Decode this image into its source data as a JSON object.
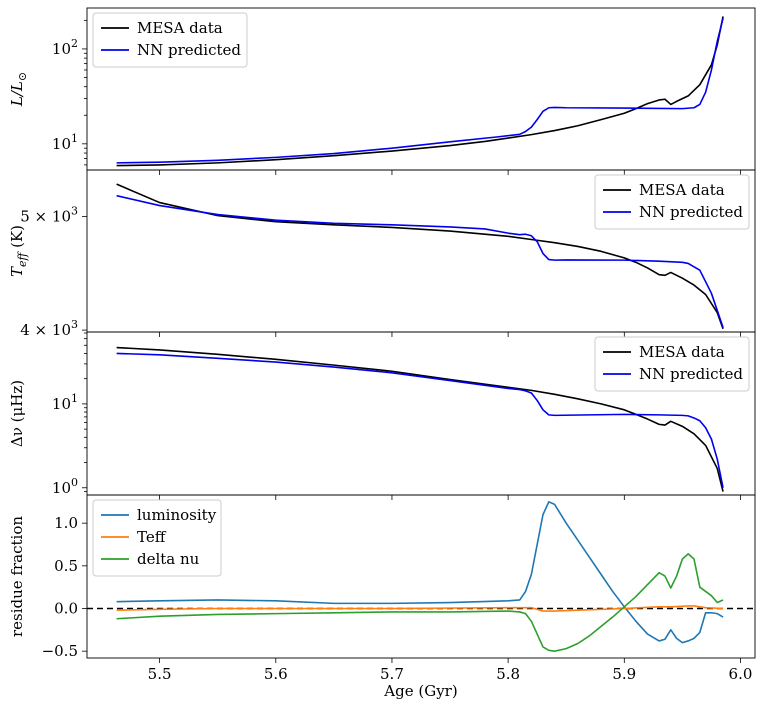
{
  "chart_data": [
    {
      "type": "line",
      "ylabel": "L/L⊙",
      "yscale": "log",
      "ylim": [
        5.3,
        270
      ],
      "xlim": [
        5.4375,
        6.0125
      ],
      "yticks": [
        {
          "value": 10,
          "label": "10",
          "sup": "1"
        },
        {
          "value": 100,
          "label": "10",
          "sup": "2"
        }
      ],
      "legend": {
        "placement": "top-left",
        "entries": [
          "MESA data",
          "NN predicted"
        ]
      },
      "series": [
        {
          "name": "MESA data",
          "color": "#000000",
          "points": [
            [
              5.463,
              5.9
            ],
            [
              5.5,
              6.0
            ],
            [
              5.55,
              6.3
            ],
            [
              5.6,
              6.8
            ],
            [
              5.65,
              7.5
            ],
            [
              5.7,
              8.4
            ],
            [
              5.75,
              9.6
            ],
            [
              5.78,
              10.6
            ],
            [
              5.8,
              11.5
            ],
            [
              5.82,
              12.5
            ],
            [
              5.84,
              13.8
            ],
            [
              5.86,
              15.5
            ],
            [
              5.88,
              18
            ],
            [
              5.9,
              21
            ],
            [
              5.91,
              23.5
            ],
            [
              5.92,
              26.5
            ],
            [
              5.93,
              29
            ],
            [
              5.935,
              29.5
            ],
            [
              5.94,
              26
            ],
            [
              5.945,
              28
            ],
            [
              5.955,
              32
            ],
            [
              5.965,
              42
            ],
            [
              5.975,
              68
            ],
            [
              5.98,
              110
            ],
            [
              5.985,
              220
            ]
          ]
        },
        {
          "name": "NN predicted",
          "color": "#0000ee",
          "points": [
            [
              5.463,
              6.3
            ],
            [
              5.5,
              6.4
            ],
            [
              5.55,
              6.7
            ],
            [
              5.6,
              7.2
            ],
            [
              5.65,
              7.9
            ],
            [
              5.7,
              9.0
            ],
            [
              5.75,
              10.5
            ],
            [
              5.79,
              11.8
            ],
            [
              5.81,
              12.6
            ],
            [
              5.815,
              13.5
            ],
            [
              5.82,
              15
            ],
            [
              5.825,
              18
            ],
            [
              5.83,
              22
            ],
            [
              5.835,
              24
            ],
            [
              5.84,
              24.2
            ],
            [
              5.85,
              24
            ],
            [
              5.9,
              23.8
            ],
            [
              5.95,
              23.5
            ],
            [
              5.96,
              24
            ],
            [
              5.965,
              26
            ],
            [
              5.97,
              35
            ],
            [
              5.975,
              60
            ],
            [
              5.98,
              120
            ],
            [
              5.985,
              210
            ]
          ]
        }
      ]
    },
    {
      "type": "line",
      "ylabel": "Teff (K)",
      "yscale": "log",
      "ylim": [
        3985,
        5480
      ],
      "xlim": [
        5.4375,
        6.0125
      ],
      "yticks": [
        {
          "value": 4000,
          "label": "4 × 10",
          "sup": "3"
        },
        {
          "value": 5000,
          "label": "5 × 10",
          "sup": "3"
        }
      ],
      "legend": {
        "placement": "top-right",
        "entries": [
          "MESA data",
          "NN predicted"
        ]
      },
      "series": [
        {
          "name": "MESA data",
          "color": "#000000",
          "points": [
            [
              5.463,
              5330
            ],
            [
              5.5,
              5140
            ],
            [
              5.55,
              5010
            ],
            [
              5.6,
              4950
            ],
            [
              5.65,
              4920
            ],
            [
              5.7,
              4895
            ],
            [
              5.75,
              4860
            ],
            [
              5.8,
              4810
            ],
            [
              5.82,
              4780
            ],
            [
              5.84,
              4750
            ],
            [
              5.86,
              4715
            ],
            [
              5.88,
              4670
            ],
            [
              5.9,
              4610
            ],
            [
              5.91,
              4570
            ],
            [
              5.92,
              4520
            ],
            [
              5.93,
              4460
            ],
            [
              5.935,
              4455
            ],
            [
              5.94,
              4480
            ],
            [
              5.95,
              4430
            ],
            [
              5.96,
              4370
            ],
            [
              5.97,
              4290
            ],
            [
              5.98,
              4140
            ],
            [
              5.985,
              4010
            ]
          ]
        },
        {
          "name": "NN predicted",
          "color": "#0000ee",
          "points": [
            [
              5.463,
              5210
            ],
            [
              5.5,
              5110
            ],
            [
              5.55,
              5020
            ],
            [
              5.6,
              4965
            ],
            [
              5.65,
              4935
            ],
            [
              5.7,
              4920
            ],
            [
              5.75,
              4900
            ],
            [
              5.78,
              4880
            ],
            [
              5.8,
              4840
            ],
            [
              5.81,
              4825
            ],
            [
              5.815,
              4830
            ],
            [
              5.82,
              4815
            ],
            [
              5.825,
              4760
            ],
            [
              5.83,
              4650
            ],
            [
              5.835,
              4595
            ],
            [
              5.84,
              4590
            ],
            [
              5.85,
              4592
            ],
            [
              5.9,
              4590
            ],
            [
              5.93,
              4580
            ],
            [
              5.95,
              4570
            ],
            [
              5.955,
              4560
            ],
            [
              5.965,
              4500
            ],
            [
              5.975,
              4300
            ],
            [
              5.985,
              4020
            ]
          ]
        }
      ]
    },
    {
      "type": "line",
      "ylabel": "Δν (μHz)",
      "yscale": "log",
      "ylim": [
        0.82,
        72
      ],
      "xlim": [
        5.4375,
        6.0125
      ],
      "yticks": [
        {
          "value": 1,
          "label": "10",
          "sup": "0"
        },
        {
          "value": 10,
          "label": "10",
          "sup": "1"
        }
      ],
      "legend": {
        "placement": "top-right",
        "entries": [
          "MESA data",
          "NN predicted"
        ]
      },
      "series": [
        {
          "name": "MESA data",
          "color": "#000000",
          "points": [
            [
              5.463,
              47
            ],
            [
              5.5,
              44
            ],
            [
              5.55,
              39
            ],
            [
              5.6,
              34
            ],
            [
              5.65,
              29
            ],
            [
              5.7,
              24.5
            ],
            [
              5.75,
              19.5
            ],
            [
              5.8,
              15.8
            ],
            [
              5.82,
              14.5
            ],
            [
              5.84,
              13
            ],
            [
              5.86,
              11.5
            ],
            [
              5.88,
              10
            ],
            [
              5.9,
              8.5
            ],
            [
              5.91,
              7.5
            ],
            [
              5.92,
              6.6
            ],
            [
              5.93,
              5.7
            ],
            [
              5.935,
              5.6
            ],
            [
              5.94,
              6.2
            ],
            [
              5.95,
              5.4
            ],
            [
              5.96,
              4.4
            ],
            [
              5.97,
              3.2
            ],
            [
              5.98,
              1.7
            ],
            [
              5.985,
              0.9
            ]
          ]
        },
        {
          "name": "NN predicted",
          "color": "#0000ee",
          "points": [
            [
              5.463,
              40
            ],
            [
              5.5,
              38.5
            ],
            [
              5.55,
              35
            ],
            [
              5.6,
              31.5
            ],
            [
              5.65,
              27.5
            ],
            [
              5.7,
              23.5
            ],
            [
              5.75,
              19
            ],
            [
              5.8,
              15.3
            ],
            [
              5.81,
              14.8
            ],
            [
              5.815,
              14.3
            ],
            [
              5.82,
              13.5
            ],
            [
              5.825,
              11
            ],
            [
              5.83,
              8.5
            ],
            [
              5.835,
              7.4
            ],
            [
              5.84,
              7.3
            ],
            [
              5.87,
              7.4
            ],
            [
              5.9,
              7.5
            ],
            [
              5.93,
              7.4
            ],
            [
              5.95,
              7.3
            ],
            [
              5.955,
              7.2
            ],
            [
              5.96,
              6.8
            ],
            [
              5.965,
              6.3
            ],
            [
              5.97,
              5.2
            ],
            [
              5.975,
              3.8
            ],
            [
              5.98,
              2.2
            ],
            [
              5.985,
              1.0
            ]
          ]
        }
      ]
    },
    {
      "type": "line",
      "ylabel": "residue fraction",
      "xlabel": "Age (Gyr)",
      "yscale": "linear",
      "ylim": [
        -0.58,
        1.33
      ],
      "xlim": [
        5.4375,
        6.0125
      ],
      "yticks": [
        {
          "value": -0.5,
          "label": "−0.5"
        },
        {
          "value": 0.0,
          "label": "0.0"
        },
        {
          "value": 0.5,
          "label": "0.5"
        },
        {
          "value": 1.0,
          "label": "1.0"
        }
      ],
      "xticks": [
        {
          "value": 5.5,
          "label": "5.5"
        },
        {
          "value": 5.6,
          "label": "5.6"
        },
        {
          "value": 5.7,
          "label": "5.7"
        },
        {
          "value": 5.8,
          "label": "5.8"
        },
        {
          "value": 5.9,
          "label": "5.9"
        },
        {
          "value": 6.0,
          "label": "6.0"
        }
      ],
      "hline": {
        "y": 0.0,
        "color": "#000000",
        "style": "dashed"
      },
      "legend": {
        "placement": "top-left",
        "entries": [
          "luminosity",
          "Teff",
          "delta nu"
        ]
      },
      "series": [
        {
          "name": "luminosity",
          "color": "#1f77b4",
          "points": [
            [
              5.463,
              0.08
            ],
            [
              5.5,
              0.09
            ],
            [
              5.55,
              0.1
            ],
            [
              5.6,
              0.09
            ],
            [
              5.65,
              0.06
            ],
            [
              5.7,
              0.06
            ],
            [
              5.75,
              0.07
            ],
            [
              5.8,
              0.09
            ],
            [
              5.81,
              0.1
            ],
            [
              5.815,
              0.2
            ],
            [
              5.82,
              0.4
            ],
            [
              5.825,
              0.75
            ],
            [
              5.83,
              1.1
            ],
            [
              5.835,
              1.25
            ],
            [
              5.84,
              1.22
            ],
            [
              5.85,
              1.0
            ],
            [
              5.86,
              0.8
            ],
            [
              5.87,
              0.6
            ],
            [
              5.88,
              0.4
            ],
            [
              5.89,
              0.2
            ],
            [
              5.9,
              0.02
            ],
            [
              5.91,
              -0.15
            ],
            [
              5.92,
              -0.3
            ],
            [
              5.93,
              -0.38
            ],
            [
              5.935,
              -0.36
            ],
            [
              5.94,
              -0.25
            ],
            [
              5.945,
              -0.35
            ],
            [
              5.95,
              -0.4
            ],
            [
              5.955,
              -0.38
            ],
            [
              5.96,
              -0.35
            ],
            [
              5.965,
              -0.28
            ],
            [
              5.97,
              -0.05
            ],
            [
              5.975,
              -0.05
            ],
            [
              5.98,
              -0.06
            ],
            [
              5.985,
              -0.1
            ]
          ]
        },
        {
          "name": "Teff",
          "color": "#ff7f0e",
          "points": [
            [
              5.463,
              -0.02
            ],
            [
              5.5,
              -0.01
            ],
            [
              5.55,
              0.0
            ],
            [
              5.6,
              0.0
            ],
            [
              5.7,
              0.0
            ],
            [
              5.8,
              0.01
            ],
            [
              5.82,
              0.01
            ],
            [
              5.83,
              -0.03
            ],
            [
              5.84,
              -0.03
            ],
            [
              5.9,
              0.0
            ],
            [
              5.93,
              0.02
            ],
            [
              5.94,
              0.02
            ],
            [
              5.955,
              0.03
            ],
            [
              5.96,
              0.03
            ],
            [
              5.97,
              0.01
            ],
            [
              5.985,
              0.0
            ]
          ]
        },
        {
          "name": "delta nu",
          "color": "#2ca02c",
          "points": [
            [
              5.463,
              -0.12
            ],
            [
              5.5,
              -0.09
            ],
            [
              5.55,
              -0.07
            ],
            [
              5.6,
              -0.06
            ],
            [
              5.65,
              -0.05
            ],
            [
              5.7,
              -0.04
            ],
            [
              5.75,
              -0.04
            ],
            [
              5.8,
              -0.03
            ],
            [
              5.81,
              -0.04
            ],
            [
              5.815,
              -0.06
            ],
            [
              5.82,
              -0.15
            ],
            [
              5.825,
              -0.3
            ],
            [
              5.83,
              -0.45
            ],
            [
              5.835,
              -0.49
            ],
            [
              5.84,
              -0.5
            ],
            [
              5.85,
              -0.47
            ],
            [
              5.86,
              -0.41
            ],
            [
              5.87,
              -0.32
            ],
            [
              5.88,
              -0.21
            ],
            [
              5.89,
              -0.1
            ],
            [
              5.9,
              0.02
            ],
            [
              5.91,
              0.14
            ],
            [
              5.92,
              0.28
            ],
            [
              5.93,
              0.42
            ],
            [
              5.935,
              0.38
            ],
            [
              5.94,
              0.24
            ],
            [
              5.945,
              0.38
            ],
            [
              5.95,
              0.58
            ],
            [
              5.955,
              0.64
            ],
            [
              5.96,
              0.58
            ],
            [
              5.965,
              0.25
            ],
            [
              5.97,
              0.2
            ],
            [
              5.975,
              0.15
            ],
            [
              5.98,
              0.07
            ],
            [
              5.985,
              0.1
            ]
          ]
        }
      ]
    }
  ]
}
